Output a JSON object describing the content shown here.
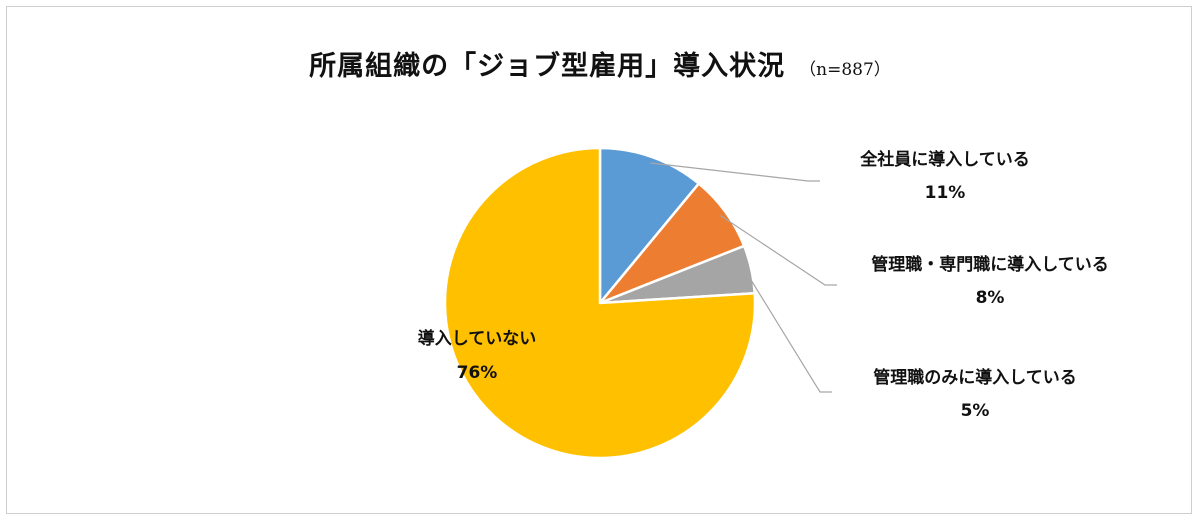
{
  "chart_data": {
    "type": "pie",
    "title": "所属組織の「ジョブ型雇用」導入状況",
    "sample_label": "（n=887）",
    "slices": [
      {
        "label": "全社員に導入している",
        "percent_label": "11%",
        "value": 11,
        "color": "#5B9BD5"
      },
      {
        "label": "管理職・専門職に導入している",
        "percent_label": "8%",
        "value": 8,
        "color": "#ED7D31"
      },
      {
        "label": "管理職のみに導入している",
        "percent_label": "5%",
        "value": 5,
        "color": "#A5A5A5"
      },
      {
        "label": "導入していない",
        "percent_label": "76%",
        "value": 76,
        "color": "#FFC000"
      }
    ],
    "start": "12 o'clock",
    "direction": "clockwise"
  }
}
